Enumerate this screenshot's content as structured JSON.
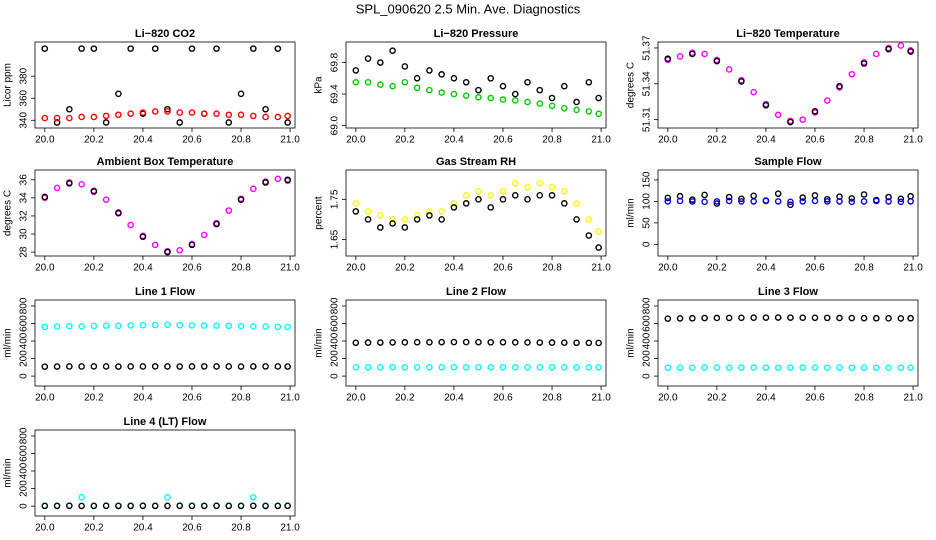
{
  "title": "SPL_090620  2.5 Min. Ave. Diagnostics",
  "chart_data": [
    {
      "type": "scatter",
      "title": "Li−820 CO2",
      "ylabel": "Licor ppm",
      "x": [
        20,
        20.05,
        20.1,
        20.15,
        20.2,
        20.25,
        20.3,
        20.35,
        20.4,
        20.45,
        20.5,
        20.55,
        20.6,
        20.65,
        20.7,
        20.75,
        20.8,
        20.85,
        20.9,
        20.95,
        20.99
      ],
      "series": [
        {
          "color": "#000000",
          "values": [
            405,
            338,
            350,
            405,
            405,
            338,
            364,
            405,
            346,
            405,
            350,
            338,
            405,
            346,
            405,
            338,
            364,
            405,
            350,
            405,
            338
          ]
        },
        {
          "color": "#ff0000",
          "values": [
            342,
            342,
            342,
            343,
            343,
            344,
            345,
            346,
            347,
            348,
            348,
            347,
            347,
            346,
            346,
            345,
            345,
            344,
            343,
            343,
            344
          ]
        }
      ],
      "xlim": [
        19.96,
        21.02
      ],
      "xticks": [
        {
          "value": 20,
          "label": "20.0"
        },
        20.2,
        20.4,
        20.6,
        20.8,
        {
          "value": 21,
          "label": "21.0"
        }
      ],
      "ylim": [
        333,
        411
      ],
      "yticks": [
        340,
        360,
        380
      ]
    },
    {
      "type": "scatter",
      "title": "Li−820 Pressure",
      "ylabel": "kPa",
      "x": [
        20,
        20.05,
        20.1,
        20.15,
        20.2,
        20.25,
        20.3,
        20.35,
        20.4,
        20.45,
        20.5,
        20.55,
        20.6,
        20.65,
        20.7,
        20.75,
        20.8,
        20.85,
        20.9,
        20.95,
        20.99
      ],
      "series": [
        {
          "color": "#00cc00",
          "values": [
            69.55,
            69.55,
            69.52,
            69.5,
            69.55,
            69.48,
            69.45,
            69.42,
            69.4,
            69.38,
            69.36,
            69.35,
            69.33,
            69.32,
            69.3,
            69.28,
            69.25,
            69.22,
            69.2,
            69.18,
            69.15
          ]
        },
        {
          "color": "#000000",
          "values": [
            69.7,
            69.85,
            69.8,
            69.95,
            69.75,
            69.6,
            69.7,
            69.65,
            69.6,
            69.55,
            69.45,
            69.6,
            69.5,
            69.4,
            69.55,
            69.45,
            69.35,
            69.5,
            69.3,
            69.55,
            69.35
          ]
        }
      ],
      "xlim": [
        19.96,
        21.02
      ],
      "xticks": [
        {
          "value": 20,
          "label": "20.0"
        },
        20.2,
        20.4,
        20.6,
        20.8,
        {
          "value": 21,
          "label": "21.0"
        }
      ],
      "ylim": [
        68.97,
        70.06
      ],
      "yticks": [
        {
          "value": 69,
          "label": "69.0"
        },
        69.4,
        69.8
      ]
    },
    {
      "type": "scatter",
      "title": "Li−820 Temperature",
      "ylabel": "degrees C",
      "x": [
        20,
        20.05,
        20.1,
        20.15,
        20.2,
        20.25,
        20.3,
        20.35,
        20.4,
        20.45,
        20.5,
        20.55,
        20.6,
        20.65,
        20.7,
        20.75,
        20.8,
        20.85,
        20.9,
        20.95,
        20.99
      ],
      "series": [
        {
          "color": "#ff00ff",
          "values": [
            51.36,
            51.363,
            51.366,
            51.365,
            51.36,
            51.352,
            51.343,
            51.333,
            51.323,
            51.314,
            51.309,
            51.31,
            51.316,
            51.326,
            51.337,
            51.348,
            51.358,
            51.365,
            51.37,
            51.372,
            51.368
          ]
        },
        {
          "color": "#000000",
          "values": [
            51.361,
            null,
            51.365,
            null,
            51.359,
            null,
            51.342,
            null,
            51.322,
            null,
            51.308,
            null,
            51.317,
            null,
            51.338,
            null,
            51.357,
            null,
            51.369,
            null,
            51.367
          ]
        }
      ],
      "xlim": [
        19.96,
        21.02
      ],
      "xticks": [
        {
          "value": 20,
          "label": "20.0"
        },
        20.2,
        20.4,
        20.6,
        20.8,
        {
          "value": 21,
          "label": "21.0"
        }
      ],
      "ylim": [
        51.303,
        51.375
      ],
      "yticks": [
        51.31,
        51.34,
        51.37
      ]
    },
    {
      "type": "scatter",
      "title": "Ambient Box Temperature",
      "ylabel": "degrees C",
      "x": [
        20,
        20.05,
        20.1,
        20.15,
        20.2,
        20.25,
        20.3,
        20.35,
        20.4,
        20.45,
        20.5,
        20.55,
        20.6,
        20.65,
        20.7,
        20.75,
        20.8,
        20.85,
        20.9,
        20.95,
        20.99
      ],
      "series": [
        {
          "color": "#ff00ff",
          "values": [
            34.0,
            35.1,
            35.7,
            35.5,
            34.8,
            33.8,
            32.4,
            31.0,
            29.8,
            28.8,
            28.1,
            28.2,
            28.9,
            29.9,
            31.2,
            32.6,
            33.9,
            35.0,
            35.8,
            36.1,
            35.9
          ]
        },
        {
          "color": "#000000",
          "values": [
            34.1,
            null,
            35.6,
            null,
            34.7,
            null,
            32.3,
            null,
            29.7,
            null,
            28.0,
            null,
            28.8,
            null,
            31.1,
            null,
            33.8,
            null,
            35.7,
            null,
            36.0
          ]
        }
      ],
      "xlim": [
        19.96,
        21.02
      ],
      "xticks": [
        {
          "value": 20,
          "label": "20.0"
        },
        20.2,
        20.4,
        20.6,
        20.8,
        {
          "value": 21,
          "label": "21.0"
        }
      ],
      "ylim": [
        27.57,
        37.08
      ],
      "yticks": [
        28,
        30,
        32,
        34,
        36
      ]
    },
    {
      "type": "scatter",
      "title": "Gas Stream RH",
      "ylabel": "percent",
      "x": [
        20,
        20.05,
        20.1,
        20.15,
        20.2,
        20.25,
        20.3,
        20.35,
        20.4,
        20.45,
        20.5,
        20.55,
        20.6,
        20.65,
        20.7,
        20.75,
        20.8,
        20.85,
        20.9,
        20.95,
        20.99
      ],
      "series": [
        {
          "color": "#ffff00",
          "values": [
            1.74,
            1.72,
            1.71,
            1.7,
            1.7,
            1.71,
            1.72,
            1.72,
            1.74,
            1.76,
            1.77,
            1.76,
            1.77,
            1.79,
            1.78,
            1.79,
            1.78,
            1.77,
            1.74,
            1.7,
            1.67
          ]
        },
        {
          "color": "#000000",
          "values": [
            1.72,
            1.7,
            1.68,
            1.69,
            1.68,
            1.7,
            1.71,
            1.7,
            1.73,
            1.74,
            1.75,
            1.73,
            1.75,
            1.76,
            1.75,
            1.76,
            1.76,
            1.74,
            1.7,
            1.66,
            1.63
          ]
        }
      ],
      "xlim": [
        19.96,
        21.02
      ],
      "xticks": [
        {
          "value": 20,
          "label": "20.0"
        },
        20.2,
        20.4,
        20.6,
        20.8,
        {
          "value": 21,
          "label": "21.0"
        }
      ],
      "ylim": [
        1.609,
        1.823
      ],
      "yticks": [
        1.65,
        1.75
      ]
    },
    {
      "type": "scatter",
      "title": "Sample Flow",
      "ylabel": "ml/min",
      "x": [
        20,
        20.05,
        20.1,
        20.15,
        20.2,
        20.25,
        20.3,
        20.35,
        20.4,
        20.45,
        20.5,
        20.55,
        20.6,
        20.65,
        20.7,
        20.75,
        20.8,
        20.85,
        20.9,
        20.95,
        20.99
      ],
      "series": [
        {
          "color": "#000000",
          "values": [
            108,
            112,
            104,
            115,
            95,
            110,
            106,
            113,
            102,
            118,
            92,
            109,
            114,
            105,
            111,
            107,
            116,
            103,
            110,
            106,
            112
          ]
        },
        {
          "color": "#0000ff",
          "values": [
            100,
            101,
            100,
            99,
            100,
            101,
            100,
            100,
            101,
            100,
            99,
            100,
            101,
            100,
            100,
            99,
            100,
            101,
            100,
            99,
            100
          ]
        }
      ],
      "xlim": [
        19.96,
        21.02
      ],
      "xticks": [
        {
          "value": 20,
          "label": "20.0"
        },
        20.2,
        20.4,
        20.6,
        20.8,
        {
          "value": 21,
          "label": "21.0"
        }
      ],
      "ylim": [
        -27,
        173
      ],
      "yticks": [
        0,
        50,
        100,
        150
      ]
    },
    {
      "type": "scatter",
      "title": "Line 1 Flow",
      "ylabel": "ml/min",
      "x": [
        20,
        20.05,
        20.1,
        20.15,
        20.2,
        20.25,
        20.3,
        20.35,
        20.4,
        20.45,
        20.5,
        20.55,
        20.6,
        20.65,
        20.7,
        20.75,
        20.8,
        20.85,
        20.9,
        20.95,
        20.99
      ],
      "series": [
        {
          "color": "#00ffff",
          "values": [
            560,
            565,
            570,
            568,
            572,
            575,
            573,
            578,
            580,
            582,
            585,
            580,
            578,
            576,
            575,
            572,
            570,
            568,
            565,
            562,
            560
          ]
        },
        {
          "color": "#000000",
          "values": [
            108,
            109,
            110,
            110,
            111,
            110,
            109,
            110,
            110,
            111,
            110,
            109,
            110,
            111,
            110,
            110,
            109,
            110,
            111,
            110,
            109
          ]
        }
      ],
      "xlim": [
        19.96,
        21.02
      ],
      "xticks": [
        {
          "value": 20,
          "label": "20.0"
        },
        20.2,
        20.4,
        20.6,
        20.8,
        {
          "value": 21,
          "label": "21.0"
        }
      ],
      "ylim": [
        -113,
        868
      ],
      "yticks": [
        0,
        200,
        400,
        600,
        800
      ]
    },
    {
      "type": "scatter",
      "title": "Line 2 Flow",
      "ylabel": "ml/min",
      "x": [
        20,
        20.05,
        20.1,
        20.15,
        20.2,
        20.25,
        20.3,
        20.35,
        20.4,
        20.45,
        20.5,
        20.55,
        20.6,
        20.65,
        20.7,
        20.75,
        20.8,
        20.85,
        20.9,
        20.95,
        20.99
      ],
      "series": [
        {
          "color": "#00ffff",
          "values": [
            100,
            101,
            100,
            102,
            101,
            100,
            101,
            102,
            101,
            100,
            101,
            102,
            101,
            100,
            101,
            100,
            101,
            100,
            99,
            100,
            101
          ]
        },
        {
          "color": "#000000",
          "values": [
            380,
            382,
            383,
            384,
            385,
            386,
            386,
            387,
            388,
            388,
            387,
            386,
            386,
            385,
            384,
            383,
            382,
            381,
            380,
            379,
            378
          ]
        }
      ],
      "xlim": [
        19.96,
        21.02
      ],
      "xticks": [
        {
          "value": 20,
          "label": "20.0"
        },
        20.2,
        20.4,
        20.6,
        20.8,
        {
          "value": 21,
          "label": "21.0"
        }
      ],
      "ylim": [
        -113,
        868
      ],
      "yticks": [
        0,
        200,
        400,
        600,
        800
      ]
    },
    {
      "type": "scatter",
      "title": "Line 3 Flow",
      "ylabel": "ml/min",
      "x": [
        20,
        20.05,
        20.1,
        20.15,
        20.2,
        20.25,
        20.3,
        20.35,
        20.4,
        20.45,
        20.5,
        20.55,
        20.6,
        20.65,
        20.7,
        20.75,
        20.8,
        20.85,
        20.9,
        20.95,
        20.99
      ],
      "series": [
        {
          "color": "#00ffff",
          "values": [
            95,
            96,
            95,
            97,
            96,
            95,
            96,
            97,
            96,
            95,
            96,
            97,
            96,
            95,
            96,
            95,
            96,
            95,
            94,
            95,
            96
          ]
        },
        {
          "color": "#000000",
          "values": [
            655,
            658,
            660,
            662,
            663,
            664,
            665,
            666,
            667,
            668,
            667,
            666,
            665,
            664,
            663,
            662,
            661,
            660,
            659,
            658,
            660
          ]
        }
      ],
      "xlim": [
        19.96,
        21.02
      ],
      "xticks": [
        {
          "value": 20,
          "label": "20.0"
        },
        20.2,
        20.4,
        20.6,
        20.8,
        {
          "value": 21,
          "label": "21.0"
        }
      ],
      "ylim": [
        -113,
        868
      ],
      "yticks": [
        0,
        200,
        400,
        600,
        800
      ]
    },
    {
      "type": "scatter",
      "title": "Line 4 (LT) Flow",
      "ylabel": "ml/min",
      "x": [
        20,
        20.05,
        20.1,
        20.15,
        20.2,
        20.25,
        20.3,
        20.35,
        20.4,
        20.45,
        20.5,
        20.55,
        20.6,
        20.65,
        20.7,
        20.75,
        20.8,
        20.85,
        20.9,
        20.95,
        20.99
      ],
      "series": [
        {
          "color": "#00ffff",
          "values": [
            5,
            5,
            6,
            100,
            5,
            6,
            5,
            5,
            6,
            5,
            100,
            5,
            6,
            5,
            5,
            6,
            5,
            100,
            5,
            6,
            5
          ]
        },
        {
          "color": "#000000",
          "values": [
            2,
            2,
            3,
            2,
            2,
            3,
            2,
            2,
            3,
            2,
            2,
            3,
            2,
            2,
            3,
            2,
            2,
            3,
            2,
            2,
            3
          ]
        }
      ],
      "xlim": [
        19.96,
        21.02
      ],
      "xticks": [
        {
          "value": 20,
          "label": "20.0"
        },
        20.2,
        20.4,
        20.6,
        20.8,
        {
          "value": 21,
          "label": "21.0"
        }
      ],
      "ylim": [
        -113,
        868
      ],
      "yticks": [
        0,
        200,
        400,
        600,
        800
      ]
    }
  ]
}
